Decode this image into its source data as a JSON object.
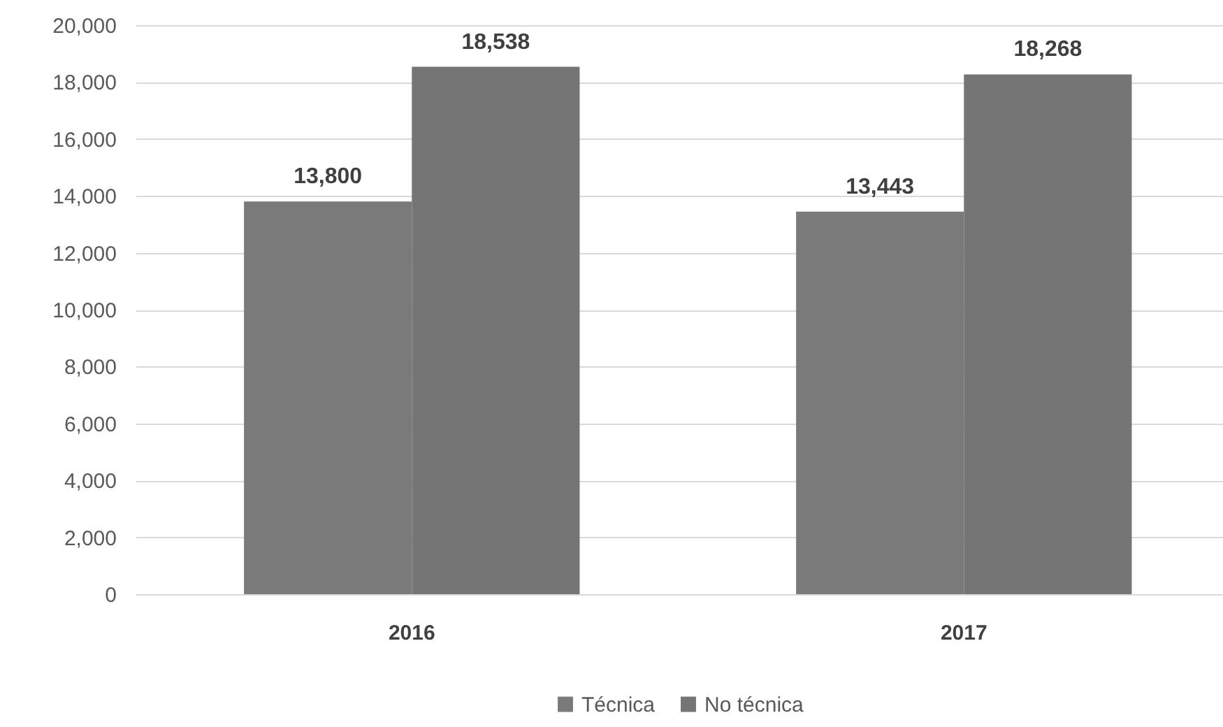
{
  "chart_data": {
    "type": "bar",
    "categories": [
      "2016",
      "2017"
    ],
    "series": [
      {
        "name": "Técnica",
        "color": "#7a7a7a",
        "values": [
          13800,
          13443
        ],
        "value_labels": [
          "13,800",
          "13,443"
        ]
      },
      {
        "name": "No técnica",
        "color": "#757575",
        "values": [
          18538,
          18268
        ],
        "value_labels": [
          "18,538",
          "18,268"
        ]
      }
    ],
    "ylim": [
      0,
      20000
    ],
    "yticks": [
      0,
      {
        "value": 2000,
        "label": "2,000"
      },
      {
        "value": 4000,
        "label": "4,000"
      },
      {
        "value": 6000,
        "label": "6,000"
      },
      {
        "value": 8000,
        "label": "8,000"
      },
      {
        "value": 10000,
        "label": "10,000"
      },
      {
        "value": 12000,
        "label": "12,000"
      },
      {
        "value": 14000,
        "label": "14,000"
      },
      {
        "value": 16000,
        "label": "16,000"
      },
      {
        "value": 18000,
        "label": "18,000"
      },
      {
        "value": 20000,
        "label": "20,000"
      }
    ],
    "grid": "y",
    "legend": "bottom"
  }
}
